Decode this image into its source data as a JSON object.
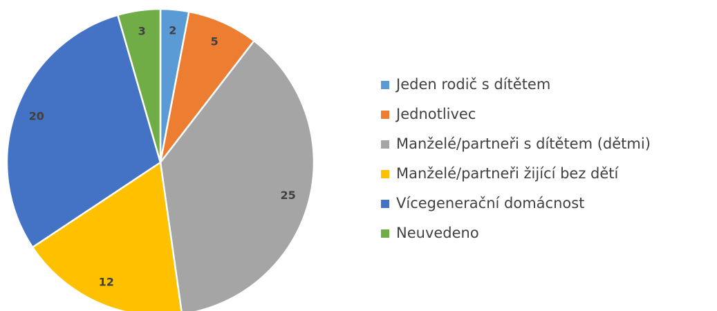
{
  "chart_data": {
    "type": "pie",
    "categories": [
      "Jeden rodič s dítětem",
      "Jednotlivec",
      "Manželé/partneři s dítětem (dětmi)",
      "Manželé/partneři žijící bez dětí",
      "Vícegenerační domácnost",
      "Neuvedeno"
    ],
    "values": [
      2,
      5,
      25,
      12,
      20,
      3
    ],
    "colors": [
      "#5b9bd5",
      "#ed7d31",
      "#a5a5a5",
      "#ffc000",
      "#4472c4",
      "#70ad47"
    ],
    "legend": "right"
  }
}
